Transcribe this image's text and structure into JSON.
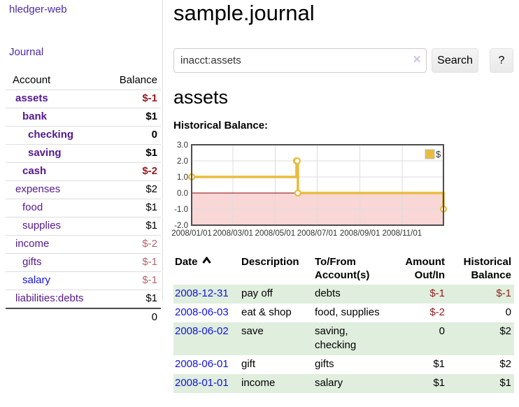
{
  "colors": {
    "nav_purple": "#4c2aa5",
    "account_purple": "#55188f",
    "link_blue": "#1212dd",
    "negative_strong": "#941d20",
    "negative_soft": "#b5656e",
    "row_stripe_green": "#dfeedd",
    "series_gold": "#e8bc3d",
    "zero_line_red": "#8b0000",
    "negative_region_pink": "#f9d7d7"
  },
  "nav": {
    "brand": "hledger-web",
    "journal": "Journal"
  },
  "sidebar": {
    "headers": {
      "account": "Account",
      "balance": "Balance"
    },
    "rows": [
      {
        "name": "assets",
        "balance": "$-1"
      },
      {
        "name": "bank",
        "balance": "$1"
      },
      {
        "name": "checking",
        "balance": "0"
      },
      {
        "name": "saving",
        "balance": "$1"
      },
      {
        "name": "cash",
        "balance": "$-2"
      },
      {
        "name": "expenses",
        "balance": "$2"
      },
      {
        "name": "food",
        "balance": "$1"
      },
      {
        "name": "supplies",
        "balance": "$1"
      },
      {
        "name": "income",
        "balance": "$-2"
      },
      {
        "name": "gifts",
        "balance": "$-1"
      },
      {
        "name": "salary",
        "balance": "$-1"
      },
      {
        "name": "liabilities:debts",
        "balance": "$1"
      }
    ],
    "total": "0"
  },
  "main": {
    "title": "sample.journal",
    "search": {
      "query": "inacct:assets",
      "clear": "×",
      "button": "Search",
      "help": "?"
    },
    "heading": "assets",
    "chart_label": "Historical Balance:"
  },
  "chart_data": {
    "type": "line",
    "title": "Historical Balance",
    "step": true,
    "series": [
      {
        "name": "$",
        "color": "#e8bc3d",
        "points": [
          [
            "2008-01-01",
            1
          ],
          [
            "2008-06-01",
            2
          ],
          [
            "2008-06-02",
            2
          ],
          [
            "2008-06-03",
            0
          ],
          [
            "2008-12-31",
            -1
          ]
        ]
      }
    ],
    "xlim": [
      "2008-01-01",
      "2008-12-31"
    ],
    "ylim": [
      -2,
      3
    ],
    "yticks": [
      3,
      2,
      1,
      0,
      -1,
      -2
    ],
    "xticks": [
      "2008/01/01",
      "2008/03/01",
      "2008/05/01",
      "2008/07/01",
      "2008/09/01",
      "2008/11/01"
    ],
    "legend": {
      "position": "top-right",
      "label": "$"
    },
    "grid": true,
    "zero_line_color": "#8b0000",
    "negative_region_color": "#f9d7d7"
  },
  "register": {
    "headers": [
      "Date",
      "Description",
      "To/From Account(s)",
      "Amount Out/In",
      "Historical Balance"
    ],
    "rows": [
      {
        "date": "2008-12-31",
        "description": "pay off",
        "accounts": "debts",
        "amount": "$-1",
        "balance": "$-1"
      },
      {
        "date": "2008-06-03",
        "description": "eat & shop",
        "accounts": "food, supplies",
        "amount": "$-2",
        "balance": "0"
      },
      {
        "date": "2008-06-02",
        "description": "save",
        "accounts": "saving, checking",
        "amount": "0",
        "balance": "$2"
      },
      {
        "date": "2008-06-01",
        "description": "gift",
        "accounts": "gifts",
        "amount": "$1",
        "balance": "$2"
      },
      {
        "date": "2008-01-01",
        "description": "income",
        "accounts": "salary",
        "amount": "$1",
        "balance": "$1"
      }
    ]
  }
}
